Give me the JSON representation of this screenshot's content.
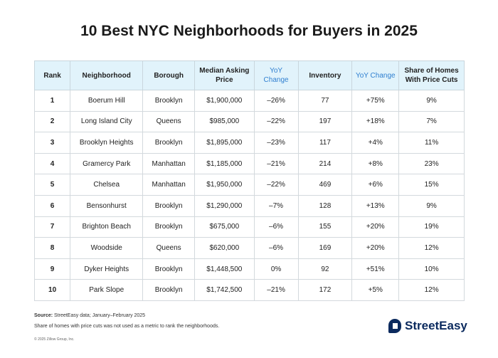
{
  "title": "10 Best NYC Neighborhoods for Buyers in 2025",
  "headers": [
    "Rank",
    "Neighborhood",
    "Borough",
    "Median Asking Price",
    "YoY Change",
    "Inventory",
    "YoY Change",
    "Share of Homes With Price Cuts"
  ],
  "rows": [
    [
      "1",
      "Boerum Hill",
      "Brooklyn",
      "$1,900,000",
      "–26%",
      "77",
      "+75%",
      "9%"
    ],
    [
      "2",
      "Long Island City",
      "Queens",
      "$985,000",
      "–22%",
      "197",
      "+18%",
      "7%"
    ],
    [
      "3",
      "Brooklyn Heights",
      "Brooklyn",
      "$1,895,000",
      "–23%",
      "117",
      "+4%",
      "11%"
    ],
    [
      "4",
      "Gramercy Park",
      "Manhattan",
      "$1,185,000",
      "–21%",
      "214",
      "+8%",
      "23%"
    ],
    [
      "5",
      "Chelsea",
      "Manhattan",
      "$1,950,000",
      "–22%",
      "469",
      "+6%",
      "15%"
    ],
    [
      "6",
      "Bensonhurst",
      "Brooklyn",
      "$1,290,000",
      "–7%",
      "128",
      "+13%",
      "9%"
    ],
    [
      "7",
      "Brighton Beach",
      "Brooklyn",
      "$675,000",
      "–6%",
      "155",
      "+20%",
      "19%"
    ],
    [
      "8",
      "Woodside",
      "Queens",
      "$620,000",
      "–6%",
      "169",
      "+20%",
      "12%"
    ],
    [
      "9",
      "Dyker Heights",
      "Brooklyn",
      "$1,448,500",
      "0%",
      "92",
      "+51%",
      "10%"
    ],
    [
      "10",
      "Park Slope",
      "Brooklyn",
      "$1,742,500",
      "–21%",
      "172",
      "+5%",
      "12%"
    ]
  ],
  "footer": {
    "source_label": "Source:",
    "source": " StreetEasy data; January–February 2025",
    "note": "Share of homes with price cuts was not used as a metric to rank the neighborhoods.",
    "copyright": "© 2025 Zillow Group, Inc.",
    "logo": "StreetEasy"
  },
  "colors": {
    "header_bg": "#e1f3fb",
    "yoy_header": "#2f7fd0",
    "brand": "#0b2a5e"
  }
}
